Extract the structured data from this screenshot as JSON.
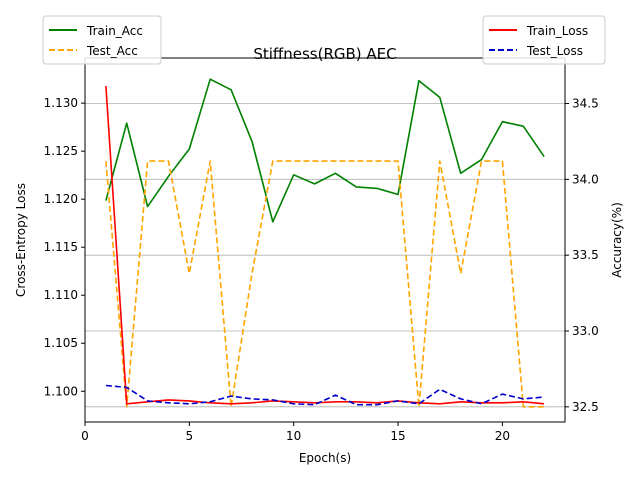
{
  "chart_data": {
    "type": "line",
    "title": "Stiffness(RGB) AEC",
    "xlabel": "Epoch(s)",
    "ylabel_left": "Cross-Entropy Loss",
    "ylabel_right": "Accuracy(%)",
    "x": [
      1,
      2,
      3,
      4,
      5,
      6,
      7,
      8,
      9,
      10,
      11,
      12,
      13,
      14,
      15,
      16,
      17,
      18,
      19,
      20,
      21,
      22
    ],
    "xlim": [
      0,
      23
    ],
    "ylim_left": [
      1.0968,
      1.1347
    ],
    "ylim_right": [
      32.4,
      34.8
    ],
    "xticks": [
      0,
      5,
      10,
      15,
      20
    ],
    "yticks_left": [
      1.1,
      1.105,
      1.11,
      1.115,
      1.12,
      1.125,
      1.13
    ],
    "yticks_right": [
      32.5,
      33.0,
      33.5,
      34.0,
      34.5
    ],
    "grid": "right-axis horizontal",
    "series": [
      {
        "name": "Train_Acc",
        "axis": "right",
        "color": "#008000",
        "style": "solid",
        "values": [
          33.86,
          34.37,
          33.82,
          34.02,
          34.2,
          34.66,
          34.59,
          34.25,
          33.72,
          34.03,
          33.97,
          34.04,
          33.95,
          33.94,
          33.9,
          34.65,
          34.54,
          34.04,
          34.13,
          34.38,
          34.35,
          34.15
        ]
      },
      {
        "name": "Test_Acc",
        "axis": "right",
        "color": "#ffa500",
        "style": "dashed",
        "values": [
          34.12,
          32.5,
          34.12,
          34.12,
          33.38,
          34.12,
          32.5,
          33.38,
          34.12,
          34.12,
          34.12,
          34.12,
          34.12,
          34.12,
          34.12,
          32.5,
          34.12,
          33.38,
          34.12,
          34.12,
          32.5,
          32.5
        ]
      },
      {
        "name": "Train_Loss",
        "axis": "left",
        "color": "#ff0000",
        "style": "solid",
        "values": [
          1.1318,
          1.0987,
          1.0989,
          1.0991,
          1.099,
          1.0988,
          1.0987,
          1.0988,
          1.099,
          1.0989,
          1.0988,
          1.0989,
          1.0989,
          1.0988,
          1.099,
          1.0988,
          1.0987,
          1.0989,
          1.0988,
          1.0988,
          1.0989,
          1.0987
        ]
      },
      {
        "name": "Test_Loss",
        "axis": "left",
        "color": "#0000cc",
        "style": "dashed",
        "values": [
          1.1006,
          1.1004,
          1.099,
          1.0988,
          1.0987,
          1.0989,
          1.0995,
          1.0992,
          1.0991,
          1.0987,
          1.0986,
          1.0996,
          1.0986,
          1.0986,
          1.099,
          1.0987,
          1.1002,
          1.0992,
          1.0987,
          1.0997,
          1.0992,
          1.0994
        ]
      }
    ],
    "legends": [
      {
        "placement": "top-left",
        "entries": [
          "Train_Acc",
          "Test_Acc"
        ]
      },
      {
        "placement": "top-right",
        "entries": [
          "Train_Loss",
          "Test_Loss"
        ]
      }
    ]
  }
}
